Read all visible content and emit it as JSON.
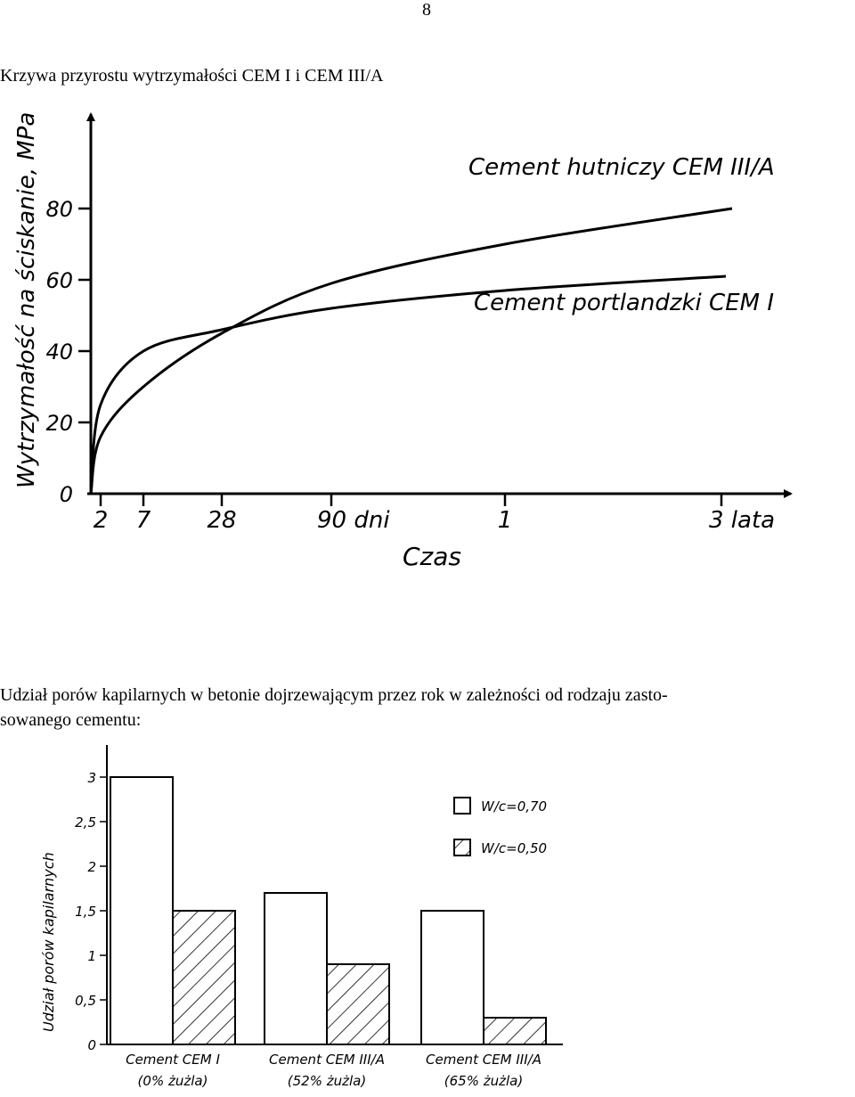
{
  "page_number": "8",
  "caption1": "Krzywa przyrostu wytrzymałości CEM I i CEM III/A",
  "caption2_line1": "Udział porów kapilarnych w betonie dojrzewającym przez rok w zależności od rodzaju zasto-",
  "caption2_line2": "sowanego cementu:",
  "chart_data": [
    {
      "type": "line",
      "ylabel": "Wytrzymałość na ściskanie, MPa",
      "xlabel": "Czas",
      "y_ticks": [
        "0",
        "20",
        "40",
        "60",
        "80"
      ],
      "x_ticks": [
        "2",
        "7",
        "28",
        "90 dni",
        "1",
        "3 lata"
      ],
      "ylim": [
        0,
        100
      ],
      "series": [
        {
          "name": "Cement hutniczy CEM III/A",
          "x": [
            0,
            2,
            7,
            28,
            90,
            "1",
            "3 lata"
          ],
          "values": [
            0,
            16,
            30,
            45,
            59,
            70,
            80
          ]
        },
        {
          "name": "Cement portlandzki CEM I",
          "x": [
            0,
            2,
            7,
            28,
            90,
            "1",
            "3 lata"
          ],
          "values": [
            0,
            25,
            40,
            46,
            52,
            57,
            61
          ]
        }
      ]
    },
    {
      "type": "bar",
      "ylabel": "Udział porów kapilarnych",
      "y_ticks": [
        "0",
        "0,5",
        "1",
        "1,5",
        "2",
        "2,5",
        "3"
      ],
      "ylim": [
        0,
        3.4
      ],
      "categories": [
        {
          "line1": "Cement CEM I",
          "line2": "(0% żużla)"
        },
        {
          "line1": "Cement CEM III/A",
          "line2": "(52% żużla)"
        },
        {
          "line1": "Cement CEM III/A",
          "line2": "(65% żużla)"
        }
      ],
      "series": [
        {
          "name": "W/c=0,70",
          "values": [
            3.0,
            1.7,
            1.5
          ],
          "fill": "white"
        },
        {
          "name": "W/c=0,50",
          "values": [
            1.5,
            0.9,
            0.3
          ],
          "fill": "hatched"
        }
      ]
    }
  ]
}
